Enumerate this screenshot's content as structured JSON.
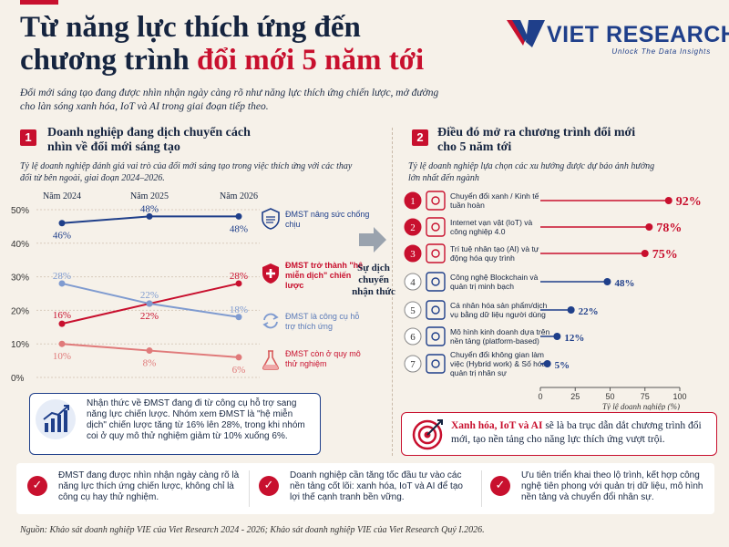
{
  "header": {
    "title_line1": "Từ năng lực thích ứng đến",
    "title_line2_a": "chương trình ",
    "title_line2_b": "đổi mới 5 năm tới",
    "subtitle": "Đổi mới sáng tạo đang được nhìn nhận ngày càng rõ như năng lực thích ứng chiến lược, mở đường cho làn sóng xanh hóa, IoT và AI trong giai đoạn tiếp theo.",
    "logo_brand": "VIET RESEARCH",
    "logo_tagline": "Unlock The Data Insights"
  },
  "section1": {
    "number": "1",
    "heading": "Doanh nghiệp đang dịch chuyển cách nhìn về đổi mới sáng tạo",
    "description": "Tỷ lệ doanh nghiệp đánh giá vai trò của đổi mới sáng tạo trong việc thích ứng với các thay đổi từ bên ngoài, giai đoạn 2024–2026.",
    "shift_label": "Sự dịch chuyển nhận thức",
    "insight": "Nhận thức về ĐMST đang đi từ công cụ hỗ trợ sang năng lực chiến lược. Nhóm xem ĐMST là \"hệ miễn dịch\" chiến lược tăng từ 16% lên 28%, trong khi nhóm coi ở quy mô thử nghiệm giảm từ 10% xuống 6%."
  },
  "section2": {
    "number": "2",
    "heading": "Điều đó mở ra chương trình đổi mới cho 5 năm tới",
    "description": "Tỷ lệ doanh nghiệp lựa chọn các xu hướng được dự báo ảnh hưởng lớn nhất đến ngành",
    "conclusion_bold": "Xanh hóa, IoT và AI",
    "conclusion_rest": " sẽ là ba trục dẫn dắt chương trình đổi mới, tạo nền tảng cho năng lực thích ứng vượt trội."
  },
  "chart_data": [
    {
      "type": "line",
      "x": [
        "Năm 2024",
        "Năm 2025",
        "Năm 2026"
      ],
      "ylim": [
        0,
        50
      ],
      "yticks": [
        "0%",
        "10%",
        "20%",
        "30%",
        "40%",
        "50%"
      ],
      "grid": true,
      "legend_placement": "right",
      "series": [
        {
          "name": "ĐMST nâng sức chống chịu",
          "values": [
            46,
            48,
            48
          ],
          "color": "#1f3f8a",
          "icon": "shield-icon"
        },
        {
          "name": "ĐMST trở thành \"hệ miễn dịch\" chiến lược",
          "values": [
            16,
            22,
            28
          ],
          "color": "#c8102e",
          "icon": "shield-plus-icon"
        },
        {
          "name": "ĐMST là công cụ hỗ trợ thích ứng",
          "values": [
            28,
            22,
            18
          ],
          "color": "#7f9bd0",
          "icon": "sync-icon"
        },
        {
          "name": "ĐMST còn ở quy mô thử nghiệm",
          "values": [
            10,
            8,
            6
          ],
          "color": "#e07a7a",
          "icon": "flask-icon"
        }
      ]
    },
    {
      "type": "bar",
      "orientation": "horizontal",
      "xlabel": "Tỷ lệ doanh nghiệp (%)",
      "xlim": [
        0,
        100
      ],
      "xticks": [
        "0",
        "25",
        "50",
        "75",
        "100"
      ],
      "categories": [
        "Chuyển đổi xanh / Kinh tế tuần hoàn",
        "Internet vạn vật (IoT) và công nghiệp 4.0",
        "Trí tuệ nhân tạo (AI) và tự động hóa quy trình",
        "Công nghệ Blockchain và quản trị minh bạch",
        "Cá nhân hóa sản phẩm/dịch vụ bằng dữ liệu người dùng",
        "Mô hình kinh doanh dựa trên nền tảng (platform-based)",
        "Chuyển đổi không gian làm việc (Hybrid work) & Số hóa quản trị nhân sự"
      ],
      "values": [
        92,
        78,
        75,
        48,
        22,
        12,
        5
      ],
      "ranks": [
        "1",
        "2",
        "3",
        "4",
        "5",
        "6",
        "7"
      ],
      "icons": [
        "recycle-icon",
        "iot-icon",
        "ai-chip-icon",
        "blockchain-icon",
        "personalization-icon",
        "platform-icon",
        "hybrid-work-icon"
      ],
      "highlight_color": "#c8102e",
      "base_color": "#1f3f8a"
    }
  ],
  "takeaways": [
    "ĐMST đang được nhìn nhận ngày càng rõ là năng lực thích ứng chiến lược, không chỉ là công cụ hay thử nghiệm.",
    "Doanh nghiệp cần tăng tốc đầu tư vào các nền tảng cốt lõi: xanh hóa, IoT và AI để tạo lợi thế cạnh tranh bền vững.",
    "Ưu tiên triển khai theo lộ trình, kết hợp công nghệ tiên phong với quản trị dữ liệu, mô hình nền tảng và chuyển đổi nhân sự."
  ],
  "footer": {
    "source": "Nguồn: Khảo sát doanh nghiệp VIE của Viet Research 2024 - 2026; Khảo sát doanh nghiệp VIE của Viet Research Quý I.2026."
  }
}
